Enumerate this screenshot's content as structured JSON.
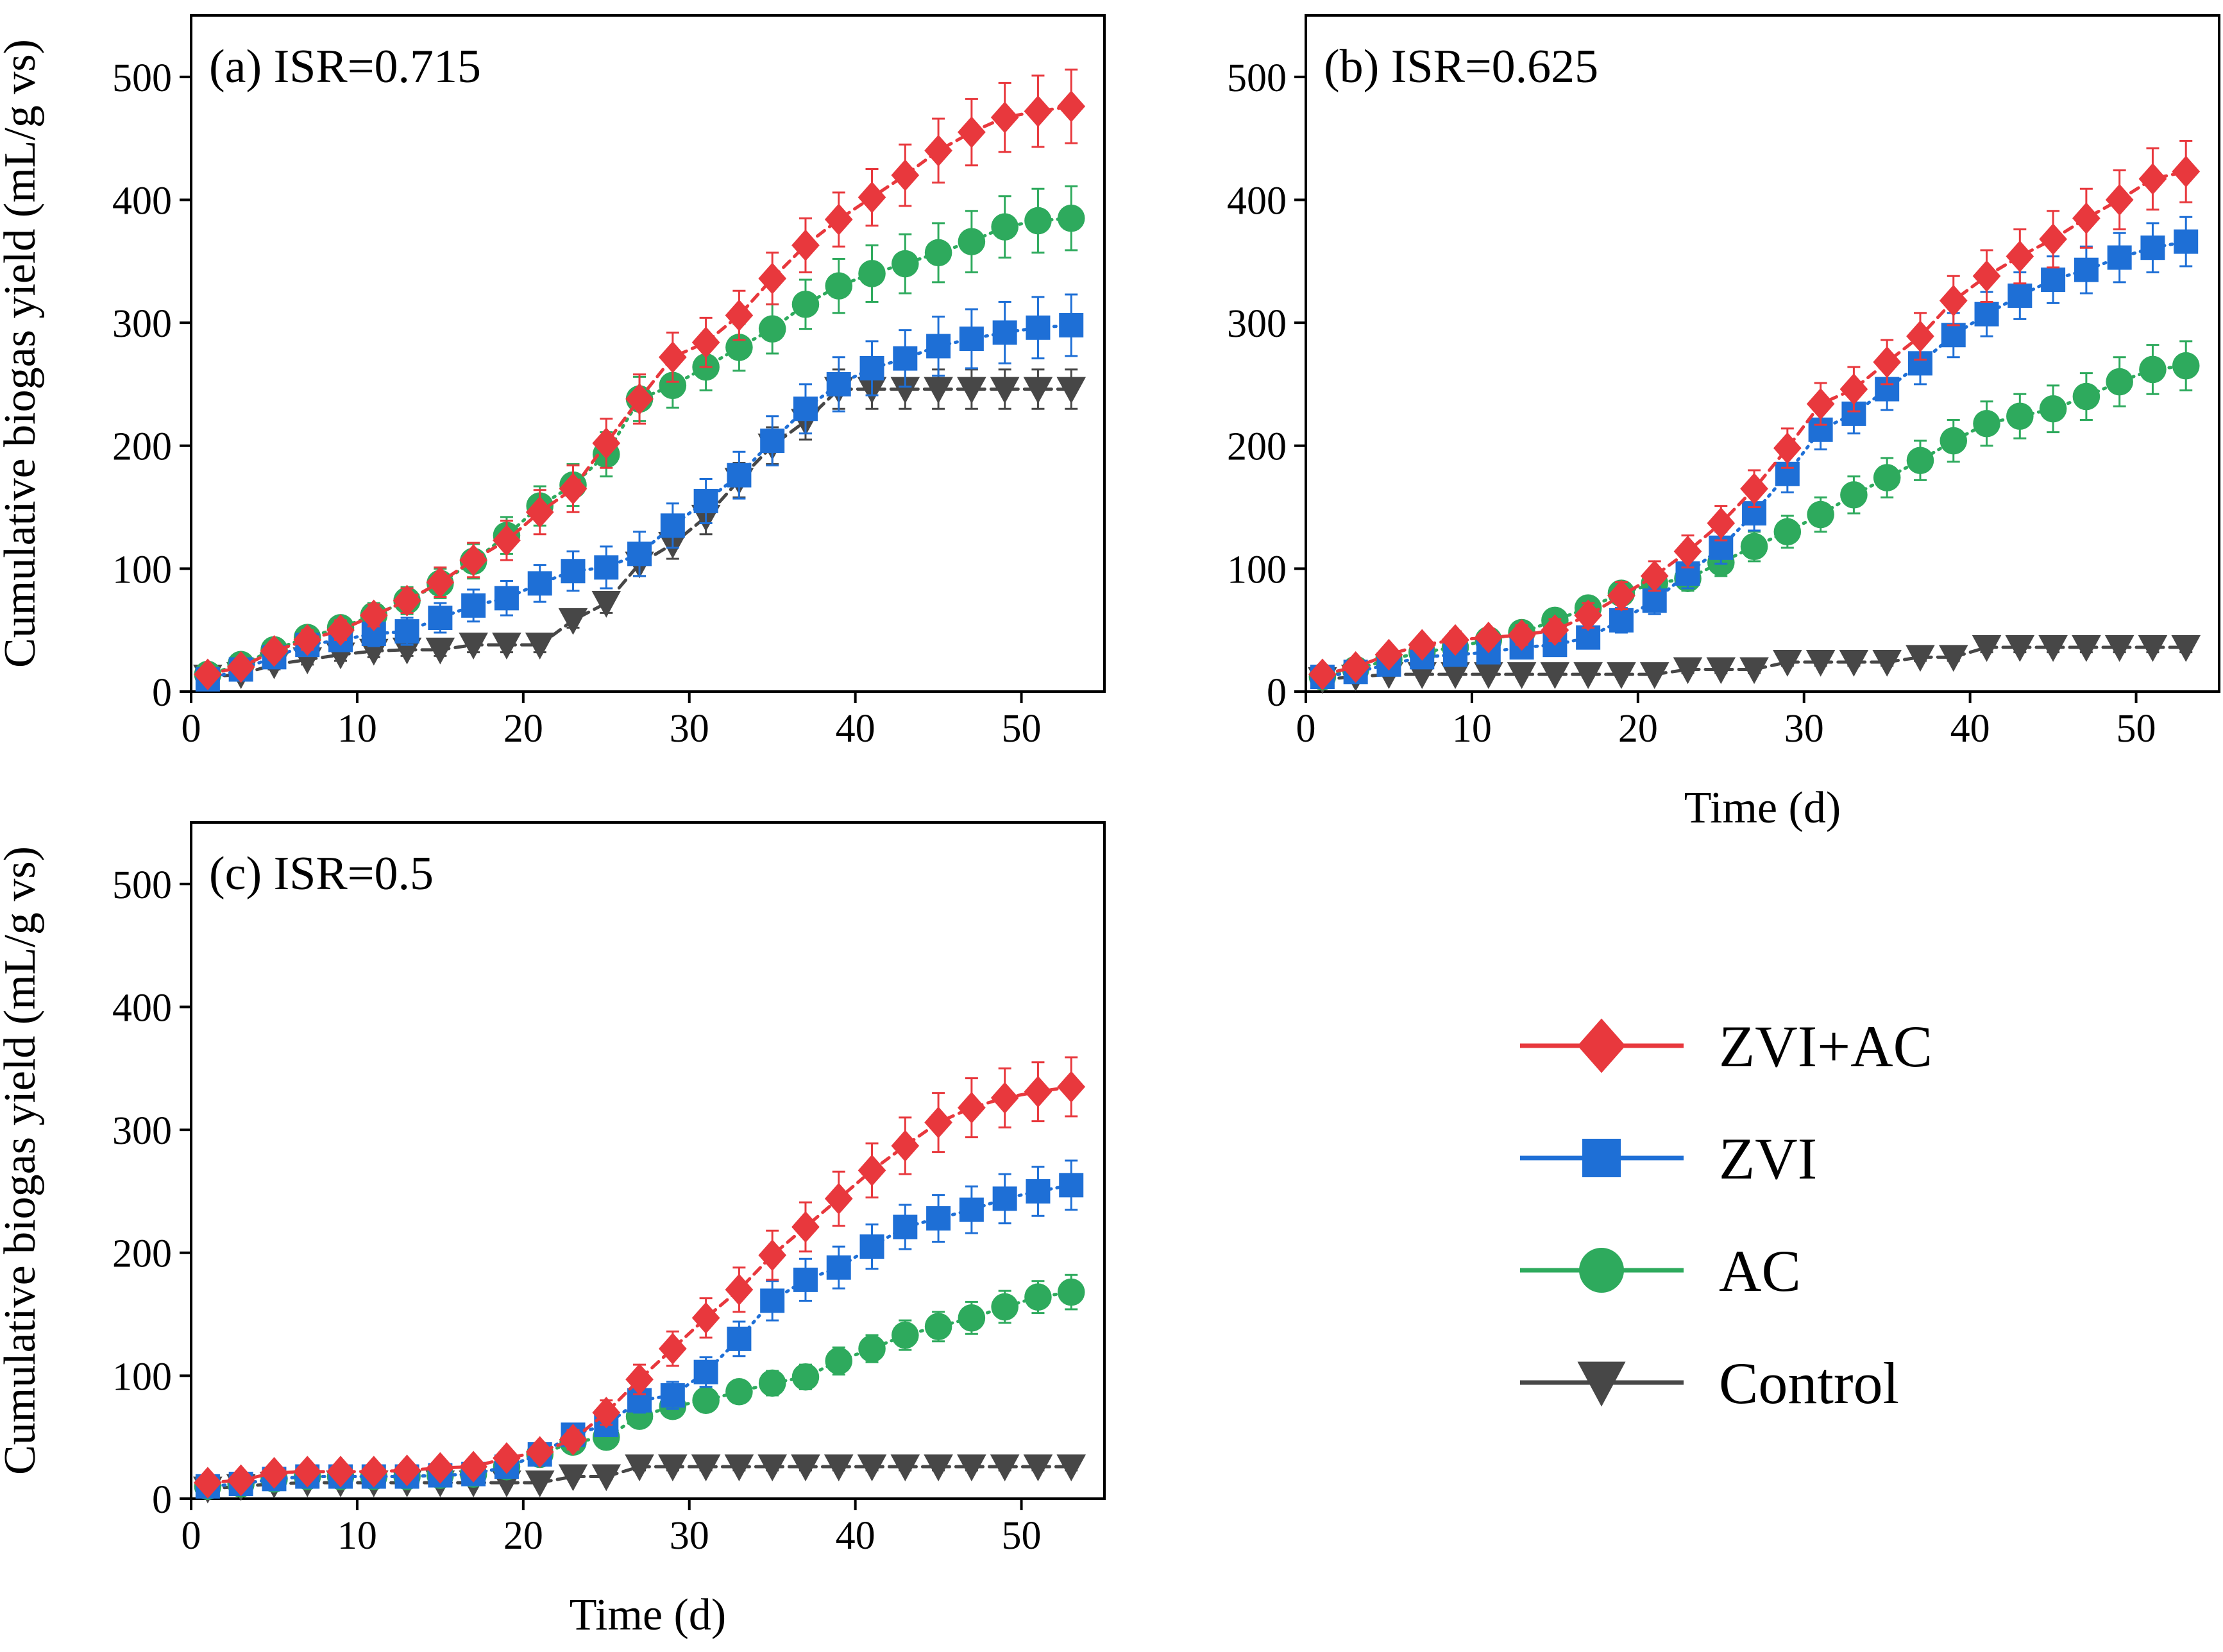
{
  "chart_data": [
    {
      "type": "line",
      "panel": "a",
      "title": "(a) ISR=0.715",
      "xlabel": "",
      "ylabel": "Cumulative biogas yield (mL/g vs)",
      "xlim": [
        0,
        55
      ],
      "ylim": [
        0,
        550
      ],
      "xticks": [
        0,
        10,
        20,
        30,
        40,
        50
      ],
      "yticks": [
        0,
        100,
        200,
        300,
        400,
        500
      ],
      "x": [
        1,
        3,
        5,
        7,
        9,
        11,
        13,
        15,
        17,
        19,
        21,
        23,
        25,
        27,
        29,
        31,
        33,
        35,
        37,
        39,
        41,
        43,
        45,
        47,
        49,
        51,
        53
      ],
      "series": [
        {
          "name": "ZVI+AC",
          "values": [
            14,
            20,
            33,
            42,
            50,
            62,
            74,
            89,
            107,
            123,
            146,
            165,
            202,
            238,
            272,
            284,
            306,
            336,
            363,
            384,
            402,
            420,
            440,
            455,
            467,
            472,
            476
          ],
          "errors": [
            5,
            6,
            7,
            8,
            8,
            9,
            10,
            12,
            14,
            16,
            18,
            19,
            20,
            20,
            20,
            20,
            20,
            21,
            22,
            22,
            23,
            25,
            26,
            27,
            28,
            29,
            30
          ]
        },
        {
          "name": "ZVI",
          "values": [
            10,
            18,
            28,
            38,
            42,
            47,
            49,
            60,
            70,
            76,
            88,
            98,
            101,
            112,
            135,
            155,
            176,
            204,
            230,
            250,
            263,
            271,
            281,
            287,
            292,
            296,
            298
          ],
          "errors": [
            4,
            5,
            6,
            7,
            8,
            10,
            11,
            12,
            13,
            14,
            15,
            16,
            17,
            18,
            18,
            18,
            19,
            20,
            20,
            22,
            22,
            23,
            24,
            24,
            25,
            25,
            25
          ]
        },
        {
          "name": "AC",
          "values": [
            14,
            22,
            34,
            44,
            52,
            62,
            74,
            88,
            106,
            127,
            151,
            168,
            193,
            238,
            249,
            264,
            280,
            295,
            315,
            330,
            340,
            348,
            357,
            366,
            378,
            383,
            385
          ],
          "errors": [
            5,
            6,
            7,
            8,
            9,
            10,
            11,
            12,
            14,
            15,
            16,
            17,
            18,
            18,
            18,
            19,
            19,
            20,
            20,
            22,
            23,
            24,
            24,
            25,
            25,
            26,
            26
          ]
        },
        {
          "name": "Control",
          "values": [
            12,
            14,
            22,
            26,
            30,
            33,
            34,
            34,
            38,
            38,
            38,
            58,
            72,
            104,
            120,
            142,
            172,
            200,
            220,
            246,
            246,
            246,
            246,
            246,
            246,
            246,
            246
          ],
          "errors": [
            3,
            3,
            4,
            4,
            5,
            5,
            5,
            5,
            6,
            6,
            6,
            6,
            8,
            10,
            12,
            14,
            14,
            15,
            15,
            16,
            16,
            16,
            16,
            16,
            16,
            16,
            16
          ]
        }
      ]
    },
    {
      "type": "line",
      "panel": "b",
      "title": "(b) ISR=0.625",
      "xlabel": "Time (d)",
      "ylabel": "",
      "xlim": [
        0,
        55
      ],
      "ylim": [
        0,
        550
      ],
      "xticks": [
        0,
        10,
        20,
        30,
        40,
        50
      ],
      "yticks": [
        0,
        100,
        200,
        300,
        400,
        500
      ],
      "x": [
        1,
        3,
        5,
        7,
        9,
        11,
        13,
        15,
        17,
        19,
        21,
        23,
        25,
        27,
        29,
        31,
        33,
        35,
        37,
        39,
        41,
        43,
        45,
        47,
        49,
        51,
        53
      ],
      "series": [
        {
          "name": "ZVI+AC",
          "values": [
            14,
            20,
            30,
            38,
            42,
            44,
            46,
            50,
            62,
            78,
            94,
            114,
            137,
            165,
            198,
            234,
            246,
            268,
            289,
            318,
            338,
            354,
            368,
            385,
            400,
            417,
            423
          ],
          "errors": [
            4,
            5,
            6,
            6,
            7,
            7,
            8,
            9,
            10,
            11,
            12,
            13,
            14,
            15,
            16,
            17,
            18,
            18,
            19,
            20,
            21,
            22,
            23,
            24,
            24,
            25,
            25
          ]
        },
        {
          "name": "ZVI",
          "values": [
            12,
            16,
            22,
            28,
            30,
            32,
            36,
            38,
            44,
            58,
            74,
            96,
            117,
            145,
            177,
            213,
            226,
            246,
            267,
            290,
            307,
            322,
            335,
            343,
            353,
            361,
            366
          ],
          "errors": [
            4,
            4,
            5,
            5,
            6,
            6,
            7,
            8,
            9,
            10,
            11,
            12,
            13,
            14,
            15,
            16,
            16,
            17,
            17,
            18,
            18,
            19,
            19,
            19,
            20,
            20,
            20
          ]
        },
        {
          "name": "AC",
          "values": [
            12,
            18,
            26,
            32,
            36,
            42,
            48,
            58,
            68,
            80,
            88,
            92,
            105,
            118,
            130,
            144,
            160,
            174,
            188,
            204,
            218,
            224,
            230,
            240,
            252,
            262,
            265
          ],
          "errors": [
            4,
            4,
            5,
            5,
            6,
            6,
            7,
            8,
            8,
            9,
            10,
            10,
            11,
            12,
            13,
            14,
            15,
            16,
            16,
            17,
            18,
            18,
            19,
            19,
            20,
            20,
            20
          ]
        },
        {
          "name": "Control",
          "values": [
            10,
            12,
            14,
            14,
            14,
            14,
            14,
            14,
            14,
            14,
            14,
            18,
            18,
            18,
            24,
            24,
            24,
            24,
            28,
            28,
            36,
            36,
            36,
            36,
            36,
            36,
            36
          ],
          "errors": [
            2,
            2,
            2,
            2,
            2,
            2,
            2,
            2,
            2,
            2,
            2,
            3,
            3,
            3,
            3,
            3,
            3,
            3,
            3,
            3,
            4,
            4,
            4,
            4,
            4,
            4,
            4
          ]
        }
      ]
    },
    {
      "type": "line",
      "panel": "c",
      "title": "(c) ISR=0.5",
      "xlabel": "Time (d)",
      "ylabel": "Cumulative biogas yield (mL/g vs)",
      "xlim": [
        0,
        55
      ],
      "ylim": [
        0,
        550
      ],
      "xticks": [
        0,
        10,
        20,
        30,
        40,
        50
      ],
      "yticks": [
        0,
        100,
        200,
        300,
        400,
        500
      ],
      "x": [
        1,
        3,
        5,
        7,
        9,
        11,
        13,
        15,
        17,
        19,
        21,
        23,
        25,
        27,
        29,
        31,
        33,
        35,
        37,
        39,
        41,
        43,
        45,
        47,
        49,
        51,
        53
      ],
      "series": [
        {
          "name": "ZVI+AC",
          "values": [
            13,
            15,
            21,
            22,
            22,
            22,
            23,
            25,
            26,
            33,
            38,
            48,
            70,
            97,
            122,
            147,
            170,
            198,
            221,
            244,
            267,
            287,
            306,
            318,
            326,
            331,
            335
          ],
          "errors": [
            3,
            3,
            4,
            4,
            4,
            4,
            4,
            4,
            5,
            6,
            7,
            8,
            10,
            12,
            14,
            16,
            18,
            20,
            20,
            22,
            22,
            23,
            24,
            24,
            24,
            24,
            24
          ]
        },
        {
          "name": "ZVI",
          "values": [
            10,
            12,
            16,
            18,
            18,
            18,
            18,
            19,
            20,
            26,
            36,
            52,
            60,
            80,
            84,
            103,
            130,
            161,
            178,
            188,
            205,
            221,
            228,
            235,
            244,
            250,
            255
          ],
          "errors": [
            3,
            3,
            4,
            4,
            4,
            4,
            4,
            4,
            5,
            6,
            7,
            8,
            9,
            10,
            11,
            12,
            14,
            16,
            17,
            17,
            18,
            18,
            19,
            19,
            20,
            20,
            20
          ]
        },
        {
          "name": "AC",
          "values": [
            10,
            12,
            16,
            18,
            18,
            18,
            18,
            19,
            20,
            26,
            36,
            46,
            50,
            67,
            75,
            80,
            87,
            94,
            99,
            112,
            122,
            133,
            140,
            147,
            156,
            164,
            168
          ],
          "errors": [
            3,
            3,
            4,
            4,
            4,
            4,
            4,
            4,
            4,
            5,
            5,
            6,
            6,
            7,
            8,
            8,
            9,
            10,
            10,
            11,
            11,
            12,
            12,
            13,
            13,
            13,
            14
          ]
        },
        {
          "name": "Control",
          "values": [
            8,
            10,
            12,
            13,
            13,
            13,
            13,
            13,
            13,
            13,
            13,
            18,
            18,
            26,
            26,
            26,
            26,
            26,
            26,
            26,
            26,
            26,
            26,
            26,
            26,
            26,
            26
          ],
          "errors": [
            2,
            2,
            2,
            2,
            2,
            2,
            2,
            2,
            2,
            2,
            2,
            2,
            2,
            3,
            3,
            3,
            3,
            3,
            3,
            3,
            3,
            3,
            3,
            3,
            3,
            3,
            3
          ]
        }
      ]
    }
  ],
  "legend": [
    {
      "name": "ZVI+AC",
      "color": "#e8383d",
      "marker": "diamond"
    },
    {
      "name": "ZVI",
      "color": "#1e6fd6",
      "marker": "square"
    },
    {
      "name": "AC",
      "color": "#2eaa5d",
      "marker": "circle"
    },
    {
      "name": "Control",
      "color": "#474747",
      "marker": "triangle-down"
    }
  ]
}
